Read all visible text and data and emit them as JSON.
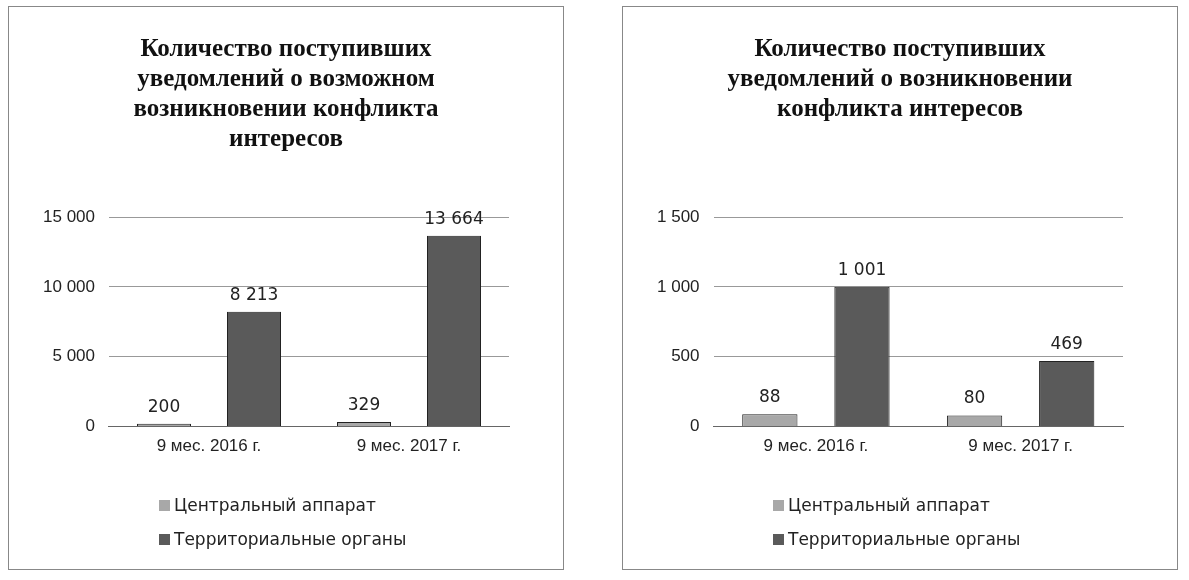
{
  "chart_data": [
    {
      "type": "bar",
      "title": "Количество поступивших уведомлений о возможном возникновении конфликта интересов",
      "categories": [
        "9 мес. 2016 г.",
        "9 мес. 2017 г."
      ],
      "series": [
        {
          "name": "Центральный аппарат",
          "color": "#a8a8a8",
          "values": [
            200,
            329
          ],
          "value_labels": [
            "200",
            "329"
          ]
        },
        {
          "name": "Территориальные органы",
          "color": "#5a5a5a",
          "values": [
            8213,
            13664
          ],
          "value_labels": [
            "8 213",
            "13 664"
          ]
        }
      ],
      "ylim": [
        0,
        15000
      ],
      "yticks": [
        {
          "value": 0,
          "label": "0"
        },
        {
          "value": 5000,
          "label": "5 000"
        },
        {
          "value": 10000,
          "label": "10 000"
        },
        {
          "value": 15000,
          "label": "15 000"
        }
      ],
      "grid": "y",
      "legend": "bottom"
    },
    {
      "type": "bar",
      "title": "Количество поступивших уведомлений о возникновении конфликта интересов",
      "categories": [
        "9 мес. 2016 г.",
        "9 мес. 2017 г."
      ],
      "series": [
        {
          "name": "Центральный аппарат",
          "color": "#a8a8a8",
          "values": [
            88,
            80
          ],
          "value_labels": [
            "88",
            "80"
          ]
        },
        {
          "name": "Территориальные органы",
          "color": "#5a5a5a",
          "values": [
            1001,
            469
          ],
          "value_labels": [
            "1 001",
            "469"
          ]
        }
      ],
      "ylim": [
        0,
        1500
      ],
      "yticks": [
        {
          "value": 0,
          "label": "0"
        },
        {
          "value": 500,
          "label": "500"
        },
        {
          "value": 1000,
          "label": "1 000"
        },
        {
          "value": 1500,
          "label": "1 500"
        }
      ],
      "grid": "y",
      "legend": "bottom"
    }
  ]
}
